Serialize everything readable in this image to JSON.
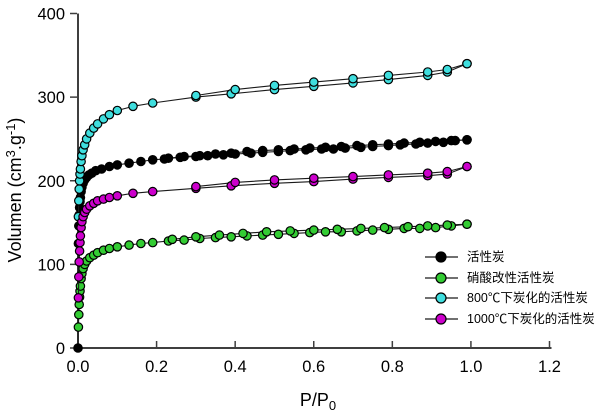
{
  "chart_data": {
    "type": "line",
    "title": "",
    "xlabel": "P/P0",
    "xlabel_parts": [
      {
        "t": "P/P"
      },
      {
        "t": "0",
        "sub": true
      }
    ],
    "ylabel": "Volumen (cm3.g-1)",
    "ylabel_parts": [
      {
        "t": "Volumen (cm"
      },
      {
        "t": "3",
        "sup": true
      },
      {
        "t": ".g"
      },
      {
        "t": "-1",
        "sup": true
      },
      {
        "t": ")"
      }
    ],
    "xlim": [
      0,
      1.2
    ],
    "ylim": [
      0,
      400
    ],
    "grid": "off",
    "legend_position": "lower right",
    "axis_color": "#3f3f3f",
    "line_color": "#1a1a1a",
    "marker_edge_color": "#000000",
    "x_ticks": [
      {
        "v": 0.0,
        "label": "0.0"
      },
      {
        "v": 0.2,
        "label": "0.2"
      },
      {
        "v": 0.4,
        "label": "0.4"
      },
      {
        "v": 0.6,
        "label": "0.6"
      },
      {
        "v": 0.8,
        "label": "0.8"
      },
      {
        "v": 1.0,
        "label": "1.0"
      },
      {
        "v": 1.2,
        "label": "1.2"
      }
    ],
    "y_ticks": [
      {
        "v": 0,
        "label": "0"
      },
      {
        "v": 100,
        "label": "100"
      },
      {
        "v": 200,
        "label": "200"
      },
      {
        "v": 300,
        "label": "300"
      },
      {
        "v": 400,
        "label": "400"
      }
    ],
    "series": [
      {
        "id": "activated-carbon",
        "label": "活性炭",
        "color": "#000000",
        "adsorption": [
          [
            0,
            0
          ],
          [
            0.001,
            125
          ],
          [
            0.002,
            146
          ],
          [
            0.003,
            159
          ],
          [
            0.004,
            168
          ],
          [
            0.005,
            175
          ],
          [
            0.006,
            180
          ],
          [
            0.008,
            187
          ],
          [
            0.01,
            192
          ],
          [
            0.013,
            197
          ],
          [
            0.017,
            201
          ],
          [
            0.022,
            204
          ],
          [
            0.028,
            207
          ],
          [
            0.035,
            209
          ],
          [
            0.045,
            212
          ],
          [
            0.06,
            214
          ],
          [
            0.08,
            217
          ],
          [
            0.1,
            219
          ],
          [
            0.13,
            221
          ],
          [
            0.16,
            223
          ],
          [
            0.19,
            225
          ],
          [
            0.22,
            226
          ],
          [
            0.26,
            228
          ],
          [
            0.3,
            229
          ],
          [
            0.33,
            230
          ],
          [
            0.37,
            231
          ],
          [
            0.4,
            232
          ],
          [
            0.44,
            233
          ],
          [
            0.47,
            234
          ],
          [
            0.51,
            235
          ],
          [
            0.54,
            236
          ],
          [
            0.58,
            237
          ],
          [
            0.62,
            238
          ],
          [
            0.65,
            238
          ],
          [
            0.68,
            239
          ],
          [
            0.72,
            240
          ],
          [
            0.75,
            241
          ],
          [
            0.79,
            242
          ],
          [
            0.82,
            243
          ],
          [
            0.86,
            244
          ],
          [
            0.89,
            245
          ],
          [
            0.93,
            246
          ],
          [
            0.96,
            248
          ],
          [
            0.99,
            249
          ]
        ],
        "desorption": [
          [
            0.99,
            249
          ],
          [
            0.95,
            248
          ],
          [
            0.91,
            247
          ],
          [
            0.87,
            246
          ],
          [
            0.83,
            245
          ],
          [
            0.79,
            244
          ],
          [
            0.75,
            243
          ],
          [
            0.71,
            242
          ],
          [
            0.67,
            241
          ],
          [
            0.63,
            240
          ],
          [
            0.59,
            239
          ],
          [
            0.55,
            238
          ],
          [
            0.51,
            237
          ],
          [
            0.47,
            236
          ],
          [
            0.43,
            235
          ],
          [
            0.39,
            233
          ],
          [
            0.35,
            232
          ],
          [
            0.31,
            230
          ],
          [
            0.27,
            229
          ],
          [
            0.23,
            227
          ]
        ]
      },
      {
        "id": "nitric-acid-modified",
        "label": "硝酸改性活性炭",
        "color": "#33cc33",
        "adsorption": [
          [
            0.001,
            25
          ],
          [
            0.002,
            40
          ],
          [
            0.003,
            52
          ],
          [
            0.004,
            61
          ],
          [
            0.005,
            68
          ],
          [
            0.006,
            74
          ],
          [
            0.008,
            83
          ],
          [
            0.01,
            89
          ],
          [
            0.013,
            95
          ],
          [
            0.017,
            100
          ],
          [
            0.022,
            104
          ],
          [
            0.03,
            108
          ],
          [
            0.04,
            111
          ],
          [
            0.05,
            114
          ],
          [
            0.065,
            117
          ],
          [
            0.08,
            119
          ],
          [
            0.1,
            121
          ],
          [
            0.13,
            123
          ],
          [
            0.16,
            125
          ],
          [
            0.19,
            126
          ],
          [
            0.23,
            128
          ],
          [
            0.27,
            129
          ],
          [
            0.31,
            131
          ],
          [
            0.35,
            132
          ],
          [
            0.39,
            133
          ],
          [
            0.43,
            134
          ],
          [
            0.47,
            135
          ],
          [
            0.51,
            136
          ],
          [
            0.55,
            137
          ],
          [
            0.59,
            138
          ],
          [
            0.63,
            139
          ],
          [
            0.67,
            139
          ],
          [
            0.71,
            140
          ],
          [
            0.75,
            141
          ],
          [
            0.79,
            142
          ],
          [
            0.83,
            143
          ],
          [
            0.87,
            143
          ],
          [
            0.91,
            144
          ],
          [
            0.95,
            146
          ],
          [
            0.99,
            148
          ]
        ],
        "desorption": [
          [
            0.99,
            148
          ],
          [
            0.94,
            147
          ],
          [
            0.89,
            146
          ],
          [
            0.84,
            145
          ],
          [
            0.78,
            144
          ],
          [
            0.72,
            143
          ],
          [
            0.66,
            142
          ],
          [
            0.6,
            141
          ],
          [
            0.54,
            140
          ],
          [
            0.48,
            139
          ],
          [
            0.42,
            137
          ],
          [
            0.36,
            135
          ],
          [
            0.3,
            133
          ],
          [
            0.24,
            130
          ]
        ]
      },
      {
        "id": "carbonized-800c",
        "label": "800℃下炭化的活性炭",
        "color": "#3fdede",
        "adsorption": [
          [
            0.001,
            157
          ],
          [
            0.002,
            176
          ],
          [
            0.003,
            190
          ],
          [
            0.004,
            200
          ],
          [
            0.005,
            208
          ],
          [
            0.006,
            214
          ],
          [
            0.008,
            223
          ],
          [
            0.01,
            230
          ],
          [
            0.013,
            237
          ],
          [
            0.017,
            243
          ],
          [
            0.022,
            250
          ],
          [
            0.03,
            257
          ],
          [
            0.04,
            263
          ],
          [
            0.05,
            268
          ],
          [
            0.065,
            274
          ],
          [
            0.08,
            279
          ],
          [
            0.1,
            284
          ],
          [
            0.14,
            289
          ],
          [
            0.19,
            293
          ],
          [
            0.3,
            300
          ],
          [
            0.39,
            304
          ],
          [
            0.5,
            309
          ],
          [
            0.6,
            313
          ],
          [
            0.7,
            317
          ],
          [
            0.79,
            321
          ],
          [
            0.89,
            326
          ],
          [
            0.94,
            330
          ],
          [
            0.99,
            340
          ]
        ],
        "desorption": [
          [
            0.99,
            340
          ],
          [
            0.94,
            333
          ],
          [
            0.89,
            330
          ],
          [
            0.79,
            326
          ],
          [
            0.7,
            322
          ],
          [
            0.6,
            318
          ],
          [
            0.5,
            314
          ],
          [
            0.4,
            309
          ],
          [
            0.3,
            302
          ]
        ]
      },
      {
        "id": "carbonized-1000c",
        "label": "1000℃下炭化的活性炭",
        "color": "#cc00cc",
        "adsorption": [
          [
            0.001,
            60
          ],
          [
            0.002,
            85
          ],
          [
            0.003,
            103
          ],
          [
            0.004,
            116
          ],
          [
            0.005,
            126
          ],
          [
            0.006,
            134
          ],
          [
            0.008,
            144
          ],
          [
            0.01,
            151
          ],
          [
            0.013,
            157
          ],
          [
            0.017,
            162
          ],
          [
            0.022,
            166
          ],
          [
            0.03,
            170
          ],
          [
            0.04,
            173
          ],
          [
            0.05,
            176
          ],
          [
            0.065,
            178
          ],
          [
            0.08,
            180
          ],
          [
            0.1,
            182
          ],
          [
            0.14,
            185
          ],
          [
            0.19,
            187
          ],
          [
            0.3,
            191
          ],
          [
            0.39,
            194
          ],
          [
            0.5,
            197
          ],
          [
            0.6,
            199
          ],
          [
            0.7,
            202
          ],
          [
            0.79,
            204
          ],
          [
            0.89,
            206
          ],
          [
            0.94,
            208
          ],
          [
            0.99,
            217
          ]
        ],
        "desorption": [
          [
            0.99,
            217
          ],
          [
            0.94,
            211
          ],
          [
            0.89,
            209
          ],
          [
            0.79,
            207
          ],
          [
            0.7,
            205
          ],
          [
            0.6,
            203
          ],
          [
            0.5,
            201
          ],
          [
            0.4,
            198
          ],
          [
            0.3,
            193
          ]
        ]
      }
    ]
  }
}
